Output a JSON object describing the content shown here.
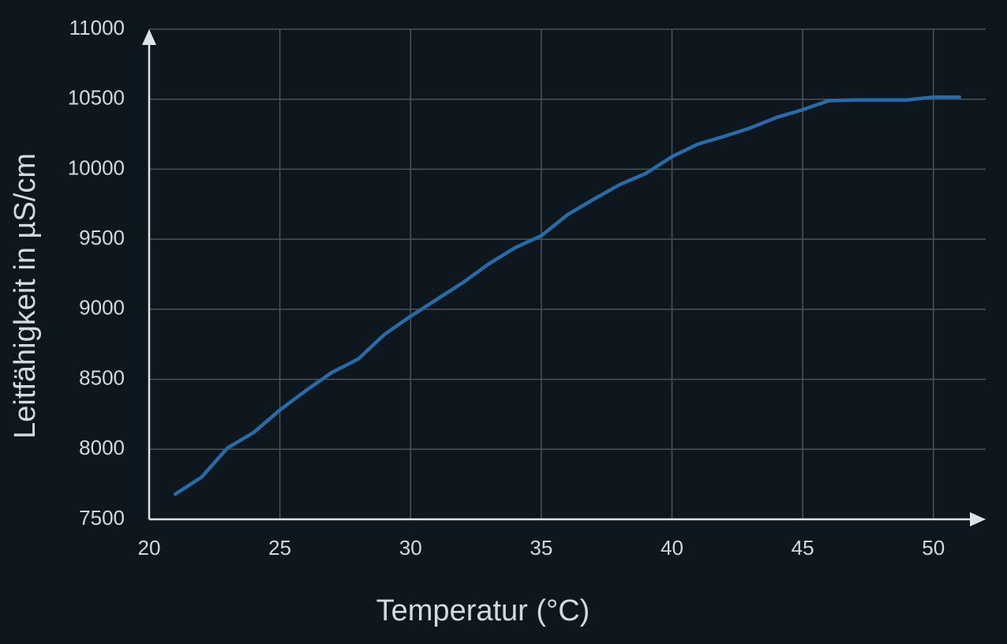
{
  "chart_data": {
    "type": "line",
    "x_label": "Temperatur (°C)",
    "y_label": "Leitfähigkeit in µS/cm",
    "x": [
      21,
      22,
      23,
      24,
      25,
      26,
      27,
      28,
      29,
      30,
      31,
      32,
      33,
      34,
      35,
      36,
      37,
      38,
      39,
      40,
      41,
      42,
      43,
      44,
      45,
      46,
      47,
      48,
      49,
      50,
      51
    ],
    "series": [
      {
        "color": "#2a6aa6",
        "values": [
          7680,
          7800,
          8010,
          8120,
          8280,
          8420,
          8550,
          8645,
          8820,
          8950,
          9070,
          9190,
          9325,
          9440,
          9525,
          9675,
          9785,
          9890,
          9970,
          10090,
          10180,
          10235,
          10295,
          10370,
          10425,
          10490,
          10495,
          10495,
          10495,
          10515,
          10515
        ]
      }
    ],
    "xlim": [
      20,
      52
    ],
    "ylim": [
      7500,
      11000
    ],
    "xticks": [
      20,
      25,
      30,
      35,
      40,
      45,
      50
    ],
    "yticks": [
      7500,
      8000,
      8500,
      9000,
      9500,
      10000,
      10500,
      11000
    ],
    "grid": true
  }
}
